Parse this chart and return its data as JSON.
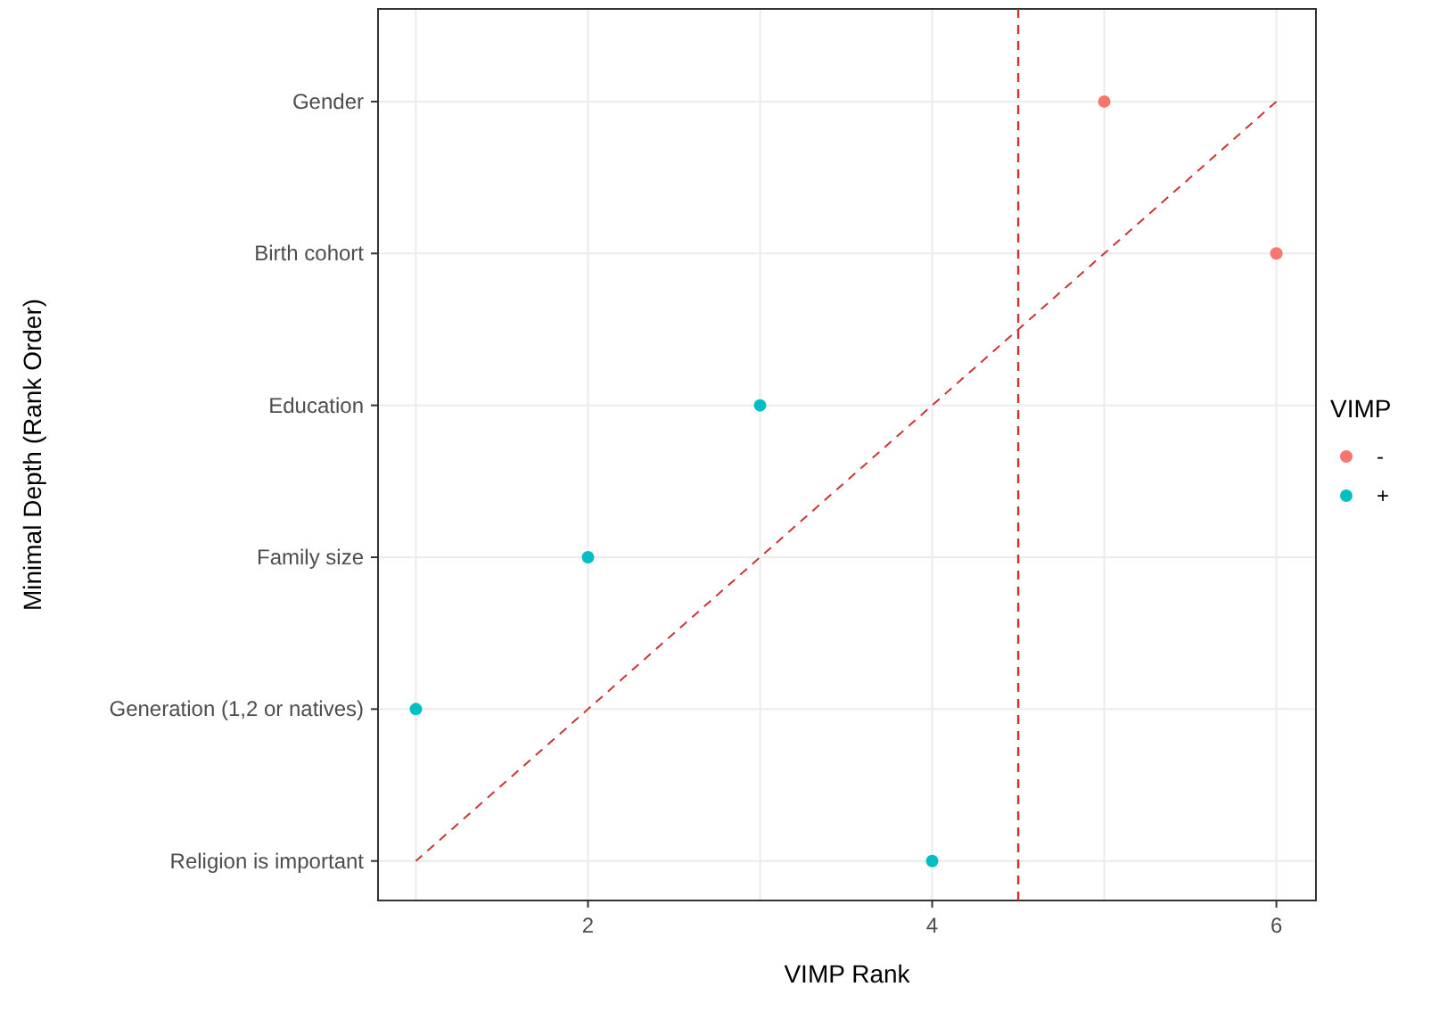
{
  "chart_data": {
    "type": "scatter",
    "orientation": "horizontal",
    "xlabel": "VIMP Rank",
    "ylabel": "Minimal Depth (Rank Order)",
    "legend_title": "VIMP",
    "categories": [
      "Gender",
      "Birth cohort",
      "Education",
      "Family size",
      "Generation (1,2 or natives)",
      "Religion is important"
    ],
    "xlim": [
      0.78,
      6.23
    ],
    "xticks": [
      {
        "value": 1,
        "label": null
      },
      2,
      {
        "value": 3,
        "label": null
      },
      4,
      {
        "value": 5,
        "label": null
      },
      6
    ],
    "grid": true,
    "legend": "right",
    "marker": "circle",
    "series": [
      {
        "type": "line",
        "color": "#cc3333",
        "line_style": "dashed",
        "marker": "none",
        "values": [
          6,
          5,
          4,
          3,
          2,
          1
        ]
      },
      {
        "name": "-",
        "color": "#f8766d",
        "values": [
          5,
          6,
          null,
          null,
          null,
          null
        ]
      },
      {
        "name": "+",
        "color": "#00bfc4",
        "values": [
          null,
          null,
          3,
          2,
          1,
          4
        ]
      }
    ],
    "ref_lines": [
      {
        "axis": "x",
        "value": 4.5,
        "color": "#cc3333",
        "line_style": "dashed"
      }
    ]
  }
}
